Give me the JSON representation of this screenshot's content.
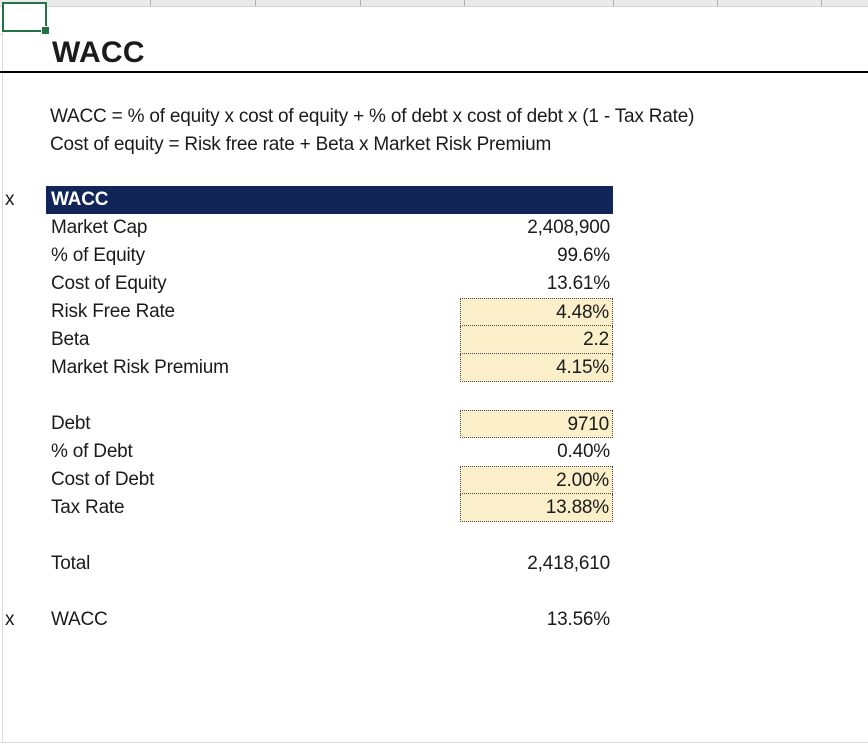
{
  "page": {
    "title": "WACC",
    "formula_line1": "WACC = % of equity x cost of equity + % of debt x cost of debt x (1 - Tax Rate)",
    "formula_line2": "Cost of equity = Risk free rate + Beta x Market Risk Premium"
  },
  "margin_markers": {
    "top": "x",
    "bottom": "x"
  },
  "table": {
    "header": "WACC",
    "rows": [
      {
        "label": "Market Cap",
        "value": "2,408,900",
        "input": false,
        "blank": false
      },
      {
        "label": "% of Equity",
        "value": "99.6%",
        "input": false,
        "blank": false
      },
      {
        "label": "Cost of Equity",
        "value": "13.61%",
        "input": false,
        "blank": false
      },
      {
        "label": "Risk Free Rate",
        "value": "4.48%",
        "input": true,
        "blank": false
      },
      {
        "label": "Beta",
        "value": "2.2",
        "input": true,
        "blank": false
      },
      {
        "label": "Market Risk Premium",
        "value": "4.15%",
        "input": true,
        "blank": false
      },
      {
        "label": "",
        "value": "",
        "input": false,
        "blank": true
      },
      {
        "label": "Debt",
        "value": "9710",
        "input": true,
        "blank": false
      },
      {
        "label": "% of Debt",
        "value": "0.40%",
        "input": false,
        "blank": false
      },
      {
        "label": "Cost of Debt",
        "value": "2.00%",
        "input": true,
        "blank": false
      },
      {
        "label": "Tax Rate",
        "value": "13.88%",
        "input": true,
        "blank": false
      },
      {
        "label": "",
        "value": "",
        "input": false,
        "blank": true
      },
      {
        "label": "Total",
        "value": "2,418,610",
        "input": false,
        "blank": false
      },
      {
        "label": "",
        "value": "",
        "input": false,
        "blank": true
      },
      {
        "label": "WACC",
        "value": "13.56%",
        "input": false,
        "blank": false
      }
    ]
  },
  "colors": {
    "header_bg": "#112559",
    "input_cell_bg": "#fbefc9",
    "selection_green": "#217346",
    "gridline": "#d9d9d9"
  }
}
